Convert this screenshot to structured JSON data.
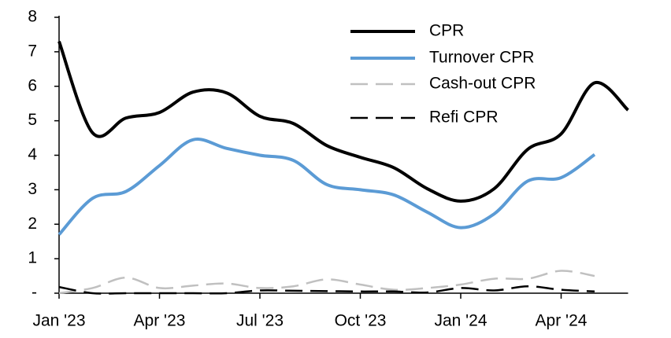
{
  "chart_data": {
    "type": "line",
    "categories": [
      "Jan '23",
      null,
      null,
      "Apr '23",
      null,
      null,
      "Jul '23",
      null,
      null,
      "Oct '23",
      null,
      null,
      "Jan '24",
      null,
      null,
      "Apr '24",
      null,
      null
    ],
    "series": [
      {
        "name": "CPR",
        "color": "#000000",
        "dash": false,
        "values": [
          7.3,
          4.65,
          5.08,
          5.24,
          5.83,
          5.81,
          5.13,
          4.92,
          4.28,
          3.94,
          3.64,
          3.03,
          2.67,
          3.03,
          4.17,
          4.62,
          6.1,
          5.31
        ]
      },
      {
        "name": "Turnover CPR",
        "color": "#5b9bd5",
        "dash": false,
        "values": [
          1.7,
          2.75,
          2.95,
          3.7,
          4.45,
          4.2,
          4.0,
          3.85,
          3.15,
          3.0,
          2.85,
          2.35,
          1.9,
          2.3,
          3.25,
          3.35,
          4.02,
          null
        ]
      },
      {
        "name": "Cash-out CPR",
        "color": "#c0c0c0",
        "dash": true,
        "values": [
          0.0,
          0.15,
          0.45,
          0.15,
          0.22,
          0.28,
          0.15,
          0.2,
          0.4,
          0.25,
          0.1,
          0.15,
          0.25,
          0.42,
          0.42,
          0.65,
          0.5,
          null
        ]
      },
      {
        "name": "Refi CPR",
        "color": "#000000",
        "dash": true,
        "values": [
          0.18,
          0.0,
          0.0,
          0.0,
          0.0,
          0.0,
          0.08,
          0.07,
          0.06,
          0.05,
          0.05,
          0.02,
          0.15,
          0.08,
          0.2,
          0.1,
          0.05,
          null
        ]
      }
    ],
    "ylim": [
      0,
      8
    ],
    "yticks": [
      {
        "value": 0,
        "label": "-"
      },
      1,
      2,
      3,
      4,
      5,
      6,
      7,
      8
    ],
    "grid": false,
    "legend": "top-right"
  }
}
